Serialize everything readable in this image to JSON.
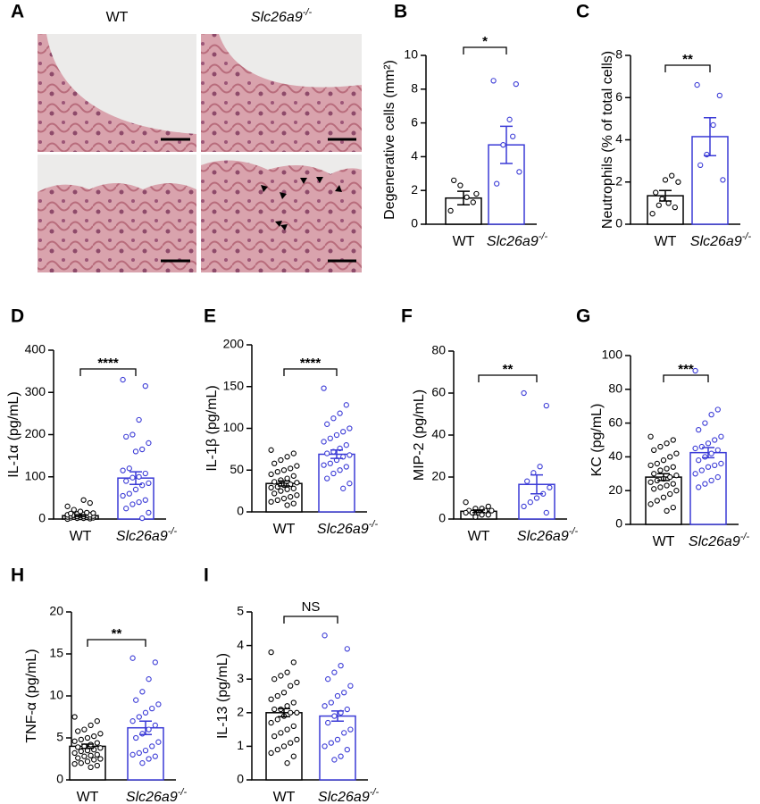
{
  "panel_a": {
    "letter": "A",
    "columns": [
      "WT",
      "Slc26a9-/-"
    ]
  },
  "chart_data": [
    {
      "type": "bar",
      "panel": "B",
      "ylabel": "Degenerative cells (mm²)",
      "categories": [
        "WT",
        "Slc26a9-/-"
      ],
      "colors": [
        "#000000",
        "#3a3ad6"
      ],
      "values": [
        1.55,
        4.7
      ],
      "errors": [
        0.4,
        1.1
      ],
      "points": [
        [
          0.8,
          1.3,
          1.6,
          2.3,
          2.6,
          1.8
        ],
        [
          8.5,
          8.3,
          6.2,
          4.7,
          2.4,
          3.1,
          5.2
        ]
      ],
      "ylim": [
        0,
        10
      ],
      "yticks": [
        0,
        2,
        4,
        6,
        8,
        10
      ],
      "significance": "*"
    },
    {
      "type": "bar",
      "panel": "C",
      "ylabel": "Neutrophils (% of total cells)",
      "categories": [
        "WT",
        "Slc26a9-/-"
      ],
      "colors": [
        "#000000",
        "#3a3ad6"
      ],
      "values": [
        1.35,
        4.15
      ],
      "errors": [
        0.25,
        0.9
      ],
      "points": [
        [
          0.5,
          0.8,
          1.0,
          1.2,
          1.5,
          2.0,
          2.3,
          2.1,
          0.9
        ],
        [
          6.6,
          6.1,
          4.7,
          3.3,
          2.8,
          2.1
        ]
      ],
      "ylim": [
        0,
        8
      ],
      "yticks": [
        0,
        2,
        4,
        6,
        8
      ],
      "significance": "**"
    },
    {
      "type": "bar",
      "panel": "D",
      "ylabel": "IL-1α (pg/mL)",
      "categories": [
        "WT",
        "Slc26a9-/-"
      ],
      "colors": [
        "#000000",
        "#3a3ad6"
      ],
      "values": [
        8,
        97
      ],
      "errors": [
        2,
        15
      ],
      "points": [
        [
          0,
          1,
          2,
          2,
          3,
          3,
          4,
          4,
          5,
          5,
          5,
          6,
          6,
          7,
          7,
          8,
          8,
          9,
          10,
          10,
          11,
          12,
          13,
          14,
          15,
          18,
          22,
          30,
          38,
          45
        ],
        [
          330,
          315,
          235,
          200,
          195,
          180,
          165,
          160,
          120,
          115,
          108,
          100,
          98,
          90,
          85,
          80,
          70,
          60,
          55,
          45,
          40,
          35,
          25,
          15,
          2
        ]
      ],
      "ylim": [
        0,
        400
      ],
      "yticks": [
        0,
        100,
        200,
        300,
        400
      ],
      "significance": "****"
    },
    {
      "type": "bar",
      "panel": "E",
      "ylabel": "IL-1β (pg/mL)",
      "categories": [
        "WT",
        "Slc26a9-/-"
      ],
      "colors": [
        "#000000",
        "#3a3ad6"
      ],
      "values": [
        34,
        69
      ],
      "errors": [
        3,
        5
      ],
      "points": [
        [
          74,
          70,
          66,
          62,
          58,
          55,
          52,
          50,
          48,
          45,
          43,
          40,
          38,
          36,
          35,
          33,
          32,
          30,
          29,
          28,
          27,
          25,
          22,
          20,
          18,
          16,
          14,
          12,
          10,
          8
        ],
        [
          148,
          128,
          118,
          112,
          105,
          100,
          96,
          92,
          88,
          84,
          80,
          76,
          72,
          70,
          68,
          66,
          62,
          58,
          56,
          54,
          50,
          46,
          40,
          34,
          28
        ]
      ],
      "ylim": [
        0,
        200
      ],
      "yticks": [
        0,
        50,
        100,
        150,
        200
      ],
      "significance": "****"
    },
    {
      "type": "bar",
      "panel": "F",
      "ylabel": "MIP-2 (pg/mL)",
      "categories": [
        "WT",
        "Slc26a9-/-"
      ],
      "colors": [
        "#000000",
        "#3a3ad6"
      ],
      "values": [
        3.7,
        16.5
      ],
      "errors": [
        0.6,
        4.5
      ],
      "points": [
        [
          8,
          6,
          5,
          5,
          4,
          4,
          4,
          3,
          3,
          3,
          2,
          2,
          1
        ],
        [
          60,
          54,
          25,
          22,
          18,
          15,
          12,
          10,
          8,
          6,
          3
        ]
      ],
      "ylim": [
        0,
        80
      ],
      "yticks": [
        0,
        20,
        40,
        60,
        80
      ],
      "significance": "**"
    },
    {
      "type": "bar",
      "panel": "G",
      "ylabel": "KC (pg/mL)",
      "categories": [
        "WT",
        "Slc26a9-/-"
      ],
      "colors": [
        "#000000",
        "#3a3ad6"
      ],
      "values": [
        28,
        42.5
      ],
      "errors": [
        2,
        3
      ],
      "points": [
        [
          52,
          50,
          48,
          46,
          44,
          42,
          40,
          38,
          36,
          35,
          34,
          33,
          32,
          30,
          29,
          28,
          27,
          26,
          25,
          24,
          23,
          22,
          21,
          20,
          18,
          16,
          14,
          12,
          10,
          8
        ],
        [
          91,
          68,
          65,
          60,
          56,
          52,
          50,
          48,
          46,
          45,
          44,
          42,
          40,
          38,
          36,
          35,
          34,
          32,
          30,
          28,
          26,
          24,
          22
        ]
      ],
      "ylim": [
        0,
        100
      ],
      "yticks": [
        0,
        20,
        40,
        60,
        80,
        100
      ],
      "significance": "***"
    },
    {
      "type": "bar",
      "panel": "H",
      "ylabel": "TNF-α (pg/mL)",
      "categories": [
        "WT",
        "Slc26a9-/-"
      ],
      "colors": [
        "#000000",
        "#3a3ad6"
      ],
      "values": [
        4.0,
        6.2
      ],
      "errors": [
        0.25,
        0.8
      ],
      "points": [
        [
          7.5,
          7,
          6.5,
          6,
          5.8,
          5.5,
          5.2,
          5,
          4.8,
          4.6,
          4.4,
          4.2,
          4,
          3.9,
          3.8,
          3.6,
          3.5,
          3.4,
          3.2,
          3,
          2.9,
          2.8,
          2.6,
          2.5,
          2.4,
          2.2,
          2,
          1.9,
          1.7,
          1.5
        ],
        [
          14.5,
          14,
          12,
          10.5,
          9.5,
          9,
          8.5,
          8,
          7.5,
          7,
          6.5,
          6,
          5.5,
          5,
          4.5,
          4,
          3.5,
          3.2,
          3,
          2.8,
          2.5,
          2
        ]
      ],
      "ylim": [
        0,
        20
      ],
      "yticks": [
        0,
        5,
        10,
        15,
        20
      ],
      "significance": "**"
    },
    {
      "type": "bar",
      "panel": "I",
      "ylabel": "IL-13 (pg/mL)",
      "categories": [
        "WT",
        "Slc26a9-/-"
      ],
      "colors": [
        "#000000",
        "#3a3ad6"
      ],
      "values": [
        2.0,
        1.9
      ],
      "errors": [
        0.12,
        0.15
      ],
      "points": [
        [
          3.8,
          3.5,
          3.2,
          3.1,
          3,
          2.9,
          2.8,
          2.6,
          2.5,
          2.4,
          2.3,
          2.2,
          2.1,
          2.1,
          2,
          2,
          1.9,
          1.8,
          1.7,
          1.6,
          1.5,
          1.4,
          1.3,
          1.2,
          1.1,
          1,
          0.9,
          0.8,
          0.7,
          0.5
        ],
        [
          4.3,
          3.9,
          3.4,
          3.2,
          3,
          2.8,
          2.6,
          2.5,
          2.3,
          2.2,
          2.1,
          2,
          1.9,
          1.7,
          1.5,
          1.4,
          1.2,
          1.1,
          1,
          0.9,
          0.7,
          0.6
        ]
      ],
      "ylim": [
        0,
        5
      ],
      "yticks": [
        0,
        1,
        2,
        3,
        4,
        5
      ],
      "significance": "NS"
    }
  ]
}
